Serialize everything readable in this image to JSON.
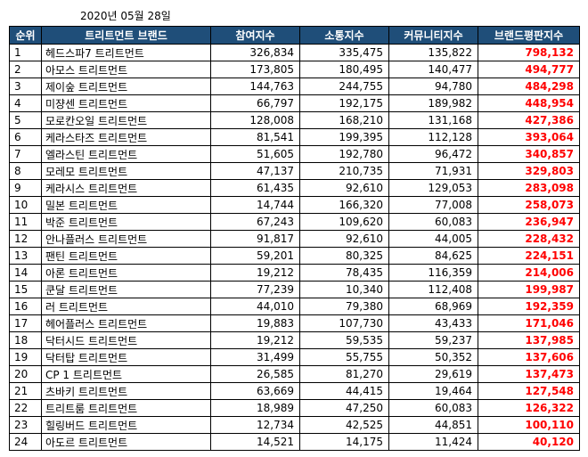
{
  "date": "2020년 05월 28일",
  "columns": [
    "순위",
    "트리트먼트 브랜드",
    "참여지수",
    "소통지수",
    "커뮤니티지수",
    "브랜드평판지수"
  ],
  "colors": {
    "header_bg": "#1f4e79",
    "header_text": "#ffffff",
    "score_text": "#ff0000"
  },
  "rows": [
    {
      "rank": "1",
      "brand": "헤드스파7 트리트먼트",
      "participation": "326,834",
      "communication": "335,475",
      "community": "135,822",
      "reputation": "798,132"
    },
    {
      "rank": "2",
      "brand": "아모스 트리트먼트",
      "participation": "173,805",
      "communication": "180,495",
      "community": "140,477",
      "reputation": "494,777"
    },
    {
      "rank": "3",
      "brand": "제이숲 트리트먼트",
      "participation": "144,763",
      "communication": "244,755",
      "community": "94,780",
      "reputation": "484,298"
    },
    {
      "rank": "4",
      "brand": "미쟝센 트리트먼트",
      "participation": "66,797",
      "communication": "192,175",
      "community": "189,982",
      "reputation": "448,954"
    },
    {
      "rank": "5",
      "brand": "모로칸오일 트리트먼트",
      "participation": "128,008",
      "communication": "168,210",
      "community": "131,168",
      "reputation": "427,386"
    },
    {
      "rank": "6",
      "brand": "케라스타즈 트리트먼트",
      "participation": "81,541",
      "communication": "199,395",
      "community": "112,128",
      "reputation": "393,064"
    },
    {
      "rank": "7",
      "brand": "엘라스틴 트리트먼트",
      "participation": "51,605",
      "communication": "192,780",
      "community": "96,472",
      "reputation": "340,857"
    },
    {
      "rank": "8",
      "brand": "모레모 트리트먼트",
      "participation": "47,137",
      "communication": "210,735",
      "community": "71,931",
      "reputation": "329,803"
    },
    {
      "rank": "9",
      "brand": "케라시스 트리트먼트",
      "participation": "61,435",
      "communication": "92,610",
      "community": "129,053",
      "reputation": "283,098"
    },
    {
      "rank": "10",
      "brand": "밀본 트리트먼트",
      "participation": "14,744",
      "communication": "166,320",
      "community": "77,008",
      "reputation": "258,073"
    },
    {
      "rank": "11",
      "brand": "박준 트리트먼트",
      "participation": "67,243",
      "communication": "109,620",
      "community": "60,083",
      "reputation": "236,947"
    },
    {
      "rank": "12",
      "brand": "안나플러스 트리트먼트",
      "participation": "91,817",
      "communication": "92,610",
      "community": "44,005",
      "reputation": "228,432"
    },
    {
      "rank": "13",
      "brand": "팬틴 트리트먼트",
      "participation": "59,201",
      "communication": "80,325",
      "community": "84,625",
      "reputation": "224,151"
    },
    {
      "rank": "14",
      "brand": "아론 트리트먼트",
      "participation": "19,212",
      "communication": "78,435",
      "community": "116,359",
      "reputation": "214,006"
    },
    {
      "rank": "15",
      "brand": "쿤달 트리트먼트",
      "participation": "77,239",
      "communication": "10,340",
      "community": "112,408",
      "reputation": "199,987"
    },
    {
      "rank": "16",
      "brand": "러 트리트먼트",
      "participation": "44,010",
      "communication": "79,380",
      "community": "68,969",
      "reputation": "192,359"
    },
    {
      "rank": "17",
      "brand": "헤어플러스 트리트먼트",
      "participation": "19,883",
      "communication": "107,730",
      "community": "43,433",
      "reputation": "171,046"
    },
    {
      "rank": "18",
      "brand": "닥터시드 트리트먼트",
      "participation": "19,212",
      "communication": "59,535",
      "community": "59,237",
      "reputation": "137,985"
    },
    {
      "rank": "19",
      "brand": "닥터탑 트리트먼트",
      "participation": "31,499",
      "communication": "55,755",
      "community": "50,352",
      "reputation": "137,606"
    },
    {
      "rank": "20",
      "brand": "CP 1 트리트먼트",
      "participation": "26,585",
      "communication": "81,270",
      "community": "29,619",
      "reputation": "137,473"
    },
    {
      "rank": "21",
      "brand": "츠바키 트리트먼트",
      "participation": "63,669",
      "communication": "44,415",
      "community": "19,464",
      "reputation": "127,548"
    },
    {
      "rank": "22",
      "brand": "트리트룸 트리트먼트",
      "participation": "18,989",
      "communication": "47,250",
      "community": "60,083",
      "reputation": "126,322"
    },
    {
      "rank": "23",
      "brand": "힐링버드 트리트먼트",
      "participation": "12,734",
      "communication": "42,525",
      "community": "44,851",
      "reputation": "100,110"
    },
    {
      "rank": "24",
      "brand": "아도르 트리트먼트",
      "participation": "14,521",
      "communication": "14,175",
      "community": "11,424",
      "reputation": "40,120"
    }
  ]
}
